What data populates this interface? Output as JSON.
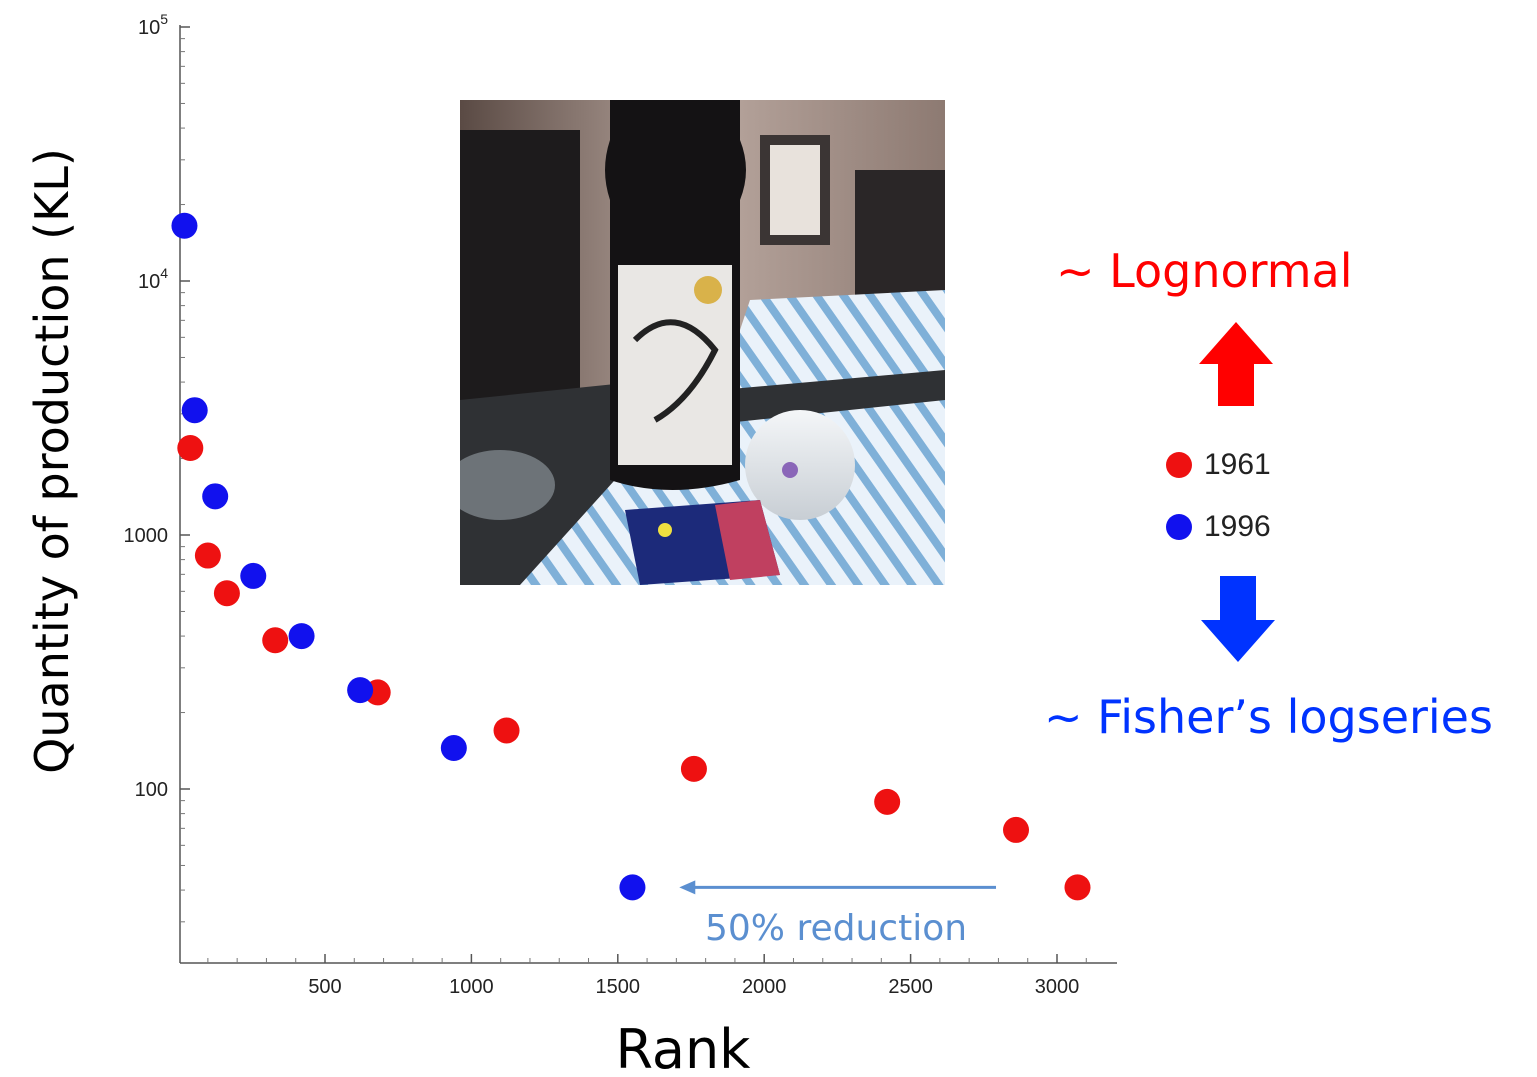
{
  "chart_data": {
    "type": "scatter",
    "title": "",
    "xlabel": "Rank",
    "ylabel": "Quantity of production (KL)",
    "y_scale": "log",
    "xlim": [
      0,
      3200
    ],
    "ylim": [
      25,
      100000
    ],
    "x_ticks": [
      500,
      1000,
      1500,
      2000,
      2500,
      3000
    ],
    "x_tick_labels": [
      "500",
      "1000",
      "1500",
      "2000",
      "2500",
      "3000"
    ],
    "y_ticks": [
      100,
      1000,
      10000,
      100000
    ],
    "y_tick_labels": [
      {
        "base": "100",
        "exp": ""
      },
      {
        "base": "1000",
        "exp": ""
      },
      {
        "base": "10",
        "exp": "4"
      },
      {
        "base": "10",
        "exp": "5"
      }
    ],
    "grid": false,
    "legend_position": "right",
    "series": [
      {
        "name": "1961",
        "color": "#ee1111",
        "points": [
          [
            40,
            2200
          ],
          [
            100,
            830
          ],
          [
            165,
            590
          ],
          [
            330,
            385
          ],
          [
            680,
            240
          ],
          [
            1120,
            170
          ],
          [
            1760,
            120
          ],
          [
            2420,
            89
          ],
          [
            2860,
            69
          ],
          [
            3070,
            41
          ]
        ]
      },
      {
        "name": "1996",
        "color": "#1111ee",
        "points": [
          [
            20,
            16500
          ],
          [
            55,
            3100
          ],
          [
            125,
            1420
          ],
          [
            255,
            690
          ],
          [
            420,
            400
          ],
          [
            620,
            245
          ],
          [
            940,
            145
          ],
          [
            1550,
            41
          ]
        ]
      }
    ],
    "annotations": [
      {
        "text": "50% reduction",
        "color": "#5b8fd0",
        "from": [
          2860,
          41
        ],
        "to": [
          1710,
          41
        ]
      }
    ]
  },
  "side_labels": {
    "upper": {
      "text": "~ Lognormal",
      "color": "#ff0000"
    },
    "lower": {
      "text": "~ Fisher’s logseries",
      "color": "#0033ff"
    }
  },
  "arrow_colors": {
    "up": "#ff0000",
    "down": "#0033ff"
  },
  "photo": {
    "subject": "sake bottle and glass on a striped cloth",
    "icon": "sake-photo"
  }
}
